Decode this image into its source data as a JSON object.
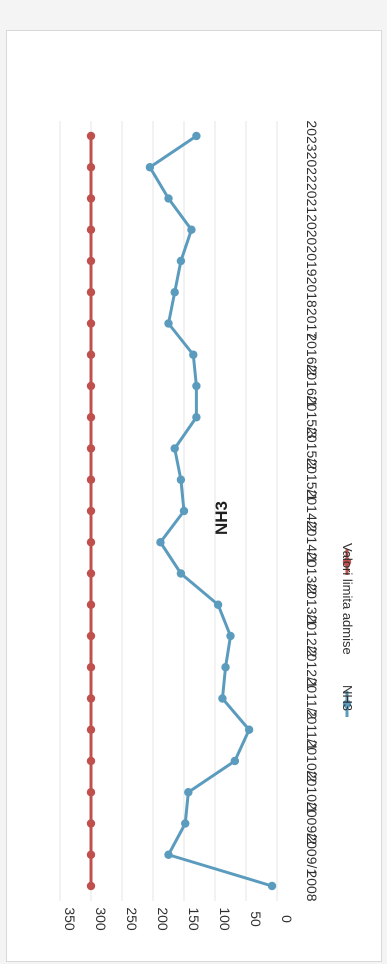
{
  "chart_data": {
    "type": "line",
    "title": "NH3",
    "categories": [
      "2008",
      "2009/1",
      "2009/2",
      "2010/1",
      "2010/2",
      "2011/1",
      "2011/2",
      "2012/1",
      "2012/2",
      "2013/1",
      "2013/2",
      "2014/1",
      "2014/2",
      "2015/1",
      "2015/2",
      "2015/3",
      "2016/1",
      "2016/2",
      "2017",
      "2018",
      "2019",
      "2020",
      "2021",
      "2022",
      "2023"
    ],
    "series": [
      {
        "name": "NH3",
        "color": "#5b9bbd",
        "values": [
          8,
          175,
          148,
          143,
          68,
          45,
          88,
          83,
          75,
          95,
          155,
          188,
          150,
          155,
          165,
          130,
          130,
          135,
          175,
          165,
          155,
          138,
          175,
          205,
          130
        ]
      },
      {
        "name": "Valori limita admise",
        "color": "#c0504d",
        "values": [
          300,
          300,
          300,
          300,
          300,
          300,
          300,
          300,
          300,
          300,
          300,
          300,
          300,
          300,
          300,
          300,
          300,
          300,
          300,
          300,
          300,
          300,
          300,
          300,
          300
        ]
      }
    ],
    "ylim": [
      0,
      350
    ],
    "yticks": [
      "0",
      "50",
      "100",
      "150",
      "200",
      "250",
      "300",
      "350"
    ],
    "xlabel": "",
    "ylabel": "",
    "grid": true,
    "legend_position": "right",
    "rotation": "rotated 90 degrees clockwise"
  }
}
